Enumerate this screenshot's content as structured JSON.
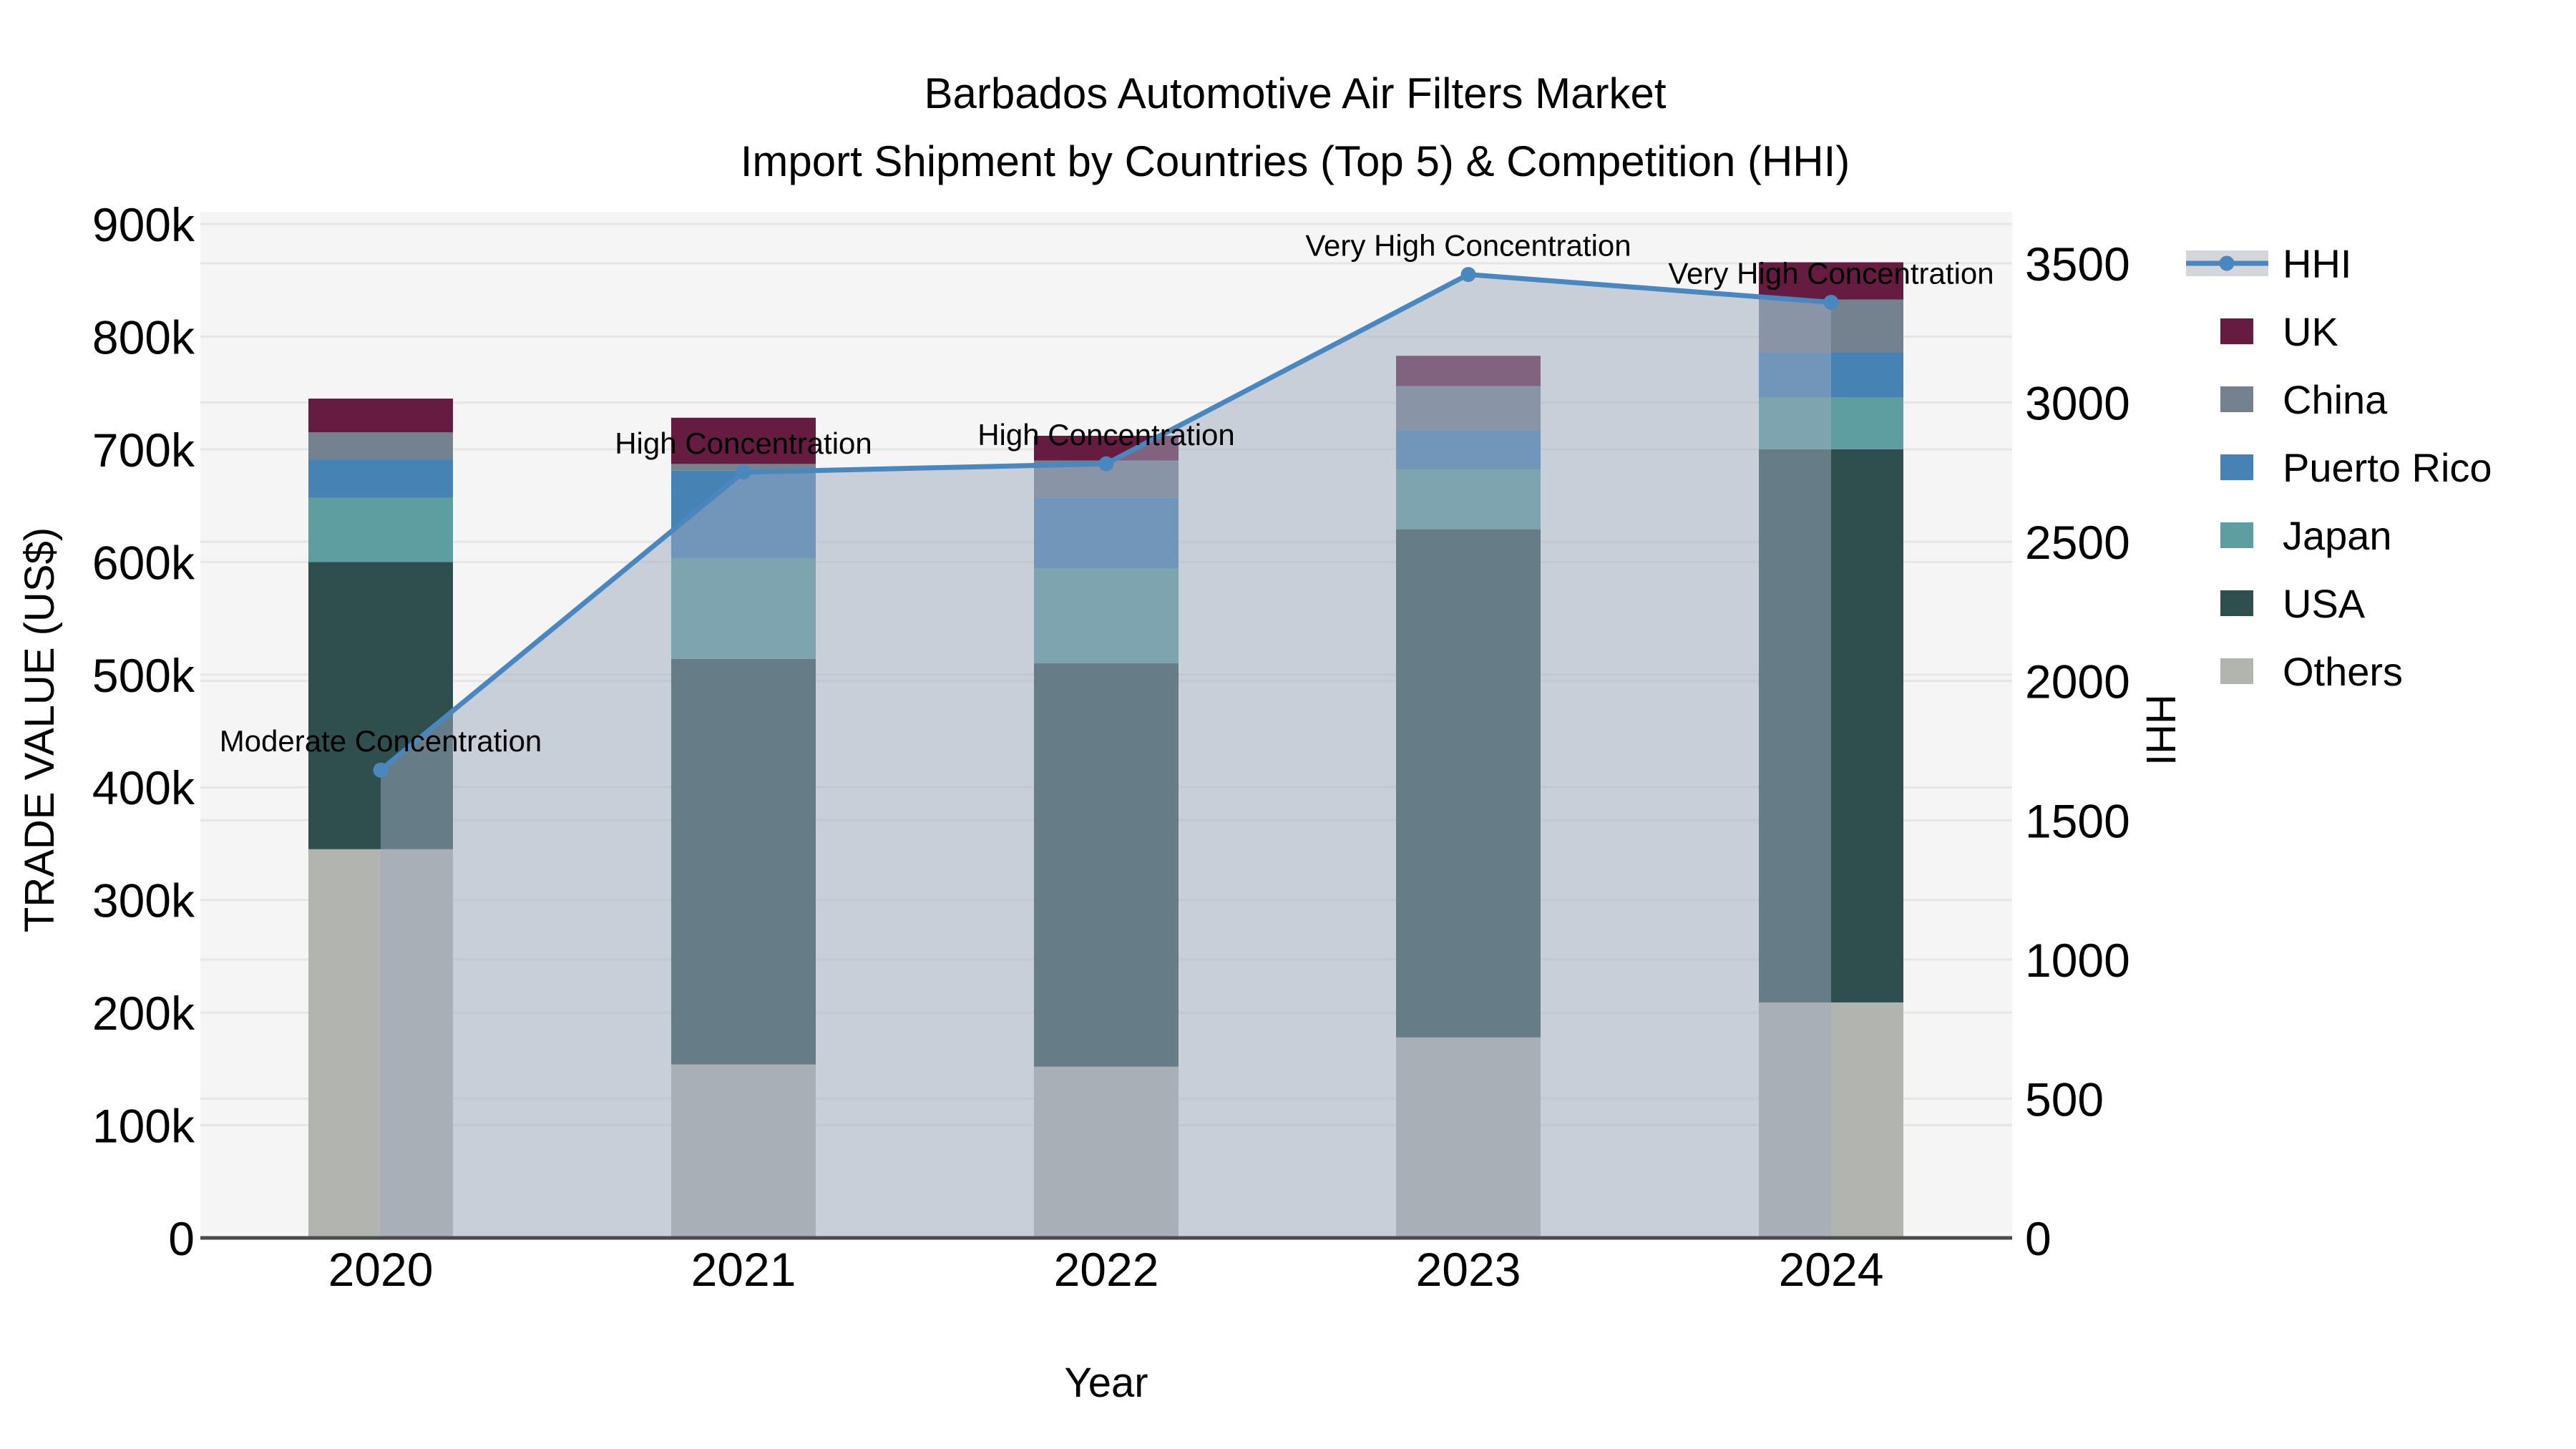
{
  "title": {
    "line1": "Barbados Automotive Air Filters Market",
    "line2": "Import Shipment by Countries (Top 5) & Competition (HHI)"
  },
  "axes": {
    "x_title": "Year",
    "y_left_title": "TRADE VALUE (US$)",
    "y_right_title": "HHI"
  },
  "legend": {
    "items": [
      {
        "label": "HHI",
        "type": "line"
      },
      {
        "label": "UK",
        "type": "patch",
        "color": "#651c40"
      },
      {
        "label": "China",
        "type": "patch",
        "color": "#74818f"
      },
      {
        "label": "Puerto Rico",
        "type": "patch",
        "color": "#4682b4"
      },
      {
        "label": "Japan",
        "type": "patch",
        "color": "#5f9ea0"
      },
      {
        "label": "USA",
        "type": "patch",
        "color": "#2f4f4f"
      },
      {
        "label": "Others",
        "type": "patch",
        "color": "#b2b4b0"
      }
    ]
  },
  "chart_data": {
    "type": "bar",
    "stacked": true,
    "categories": [
      "2020",
      "2021",
      "2022",
      "2023",
      "2024"
    ],
    "series": [
      {
        "name": "UK",
        "color": "#651c40",
        "values": [
          30000,
          41000,
          22000,
          27000,
          33000
        ]
      },
      {
        "name": "China",
        "color": "#74818f",
        "values": [
          24000,
          6000,
          33000,
          39000,
          47000
        ]
      },
      {
        "name": "Puerto Rico",
        "color": "#4682b4",
        "values": [
          34000,
          78000,
          63000,
          35000,
          40000
        ]
      },
      {
        "name": "Japan",
        "color": "#5f9ea0",
        "values": [
          57000,
          89000,
          84000,
          53000,
          46000
        ]
      },
      {
        "name": "USA",
        "color": "#2f4f4f",
        "values": [
          255000,
          360000,
          358000,
          451000,
          491000
        ]
      },
      {
        "name": "Others",
        "color": "#b2b4b0",
        "values": [
          345000,
          154000,
          152000,
          178000,
          209000
        ]
      }
    ],
    "stack_order_bottom_to_top": [
      "Others",
      "USA",
      "Japan",
      "Puerto Rico",
      "China",
      "UK"
    ],
    "line_series": {
      "name": "HHI",
      "color": "#4b87bf",
      "area_fill": "rgba(158,170,190,0.5)",
      "values": [
        1680,
        2750,
        2780,
        3460,
        3360
      ]
    },
    "annotations": [
      {
        "category": "2020",
        "text": "Moderate Concentration"
      },
      {
        "category": "2021",
        "text": "High Concentration"
      },
      {
        "category": "2022",
        "text": "High Concentration"
      },
      {
        "category": "2023",
        "text": "Very High Concentration"
      },
      {
        "category": "2024",
        "text": "Very High Concentration"
      }
    ],
    "xlabel": "Year",
    "ylabel_left": "TRADE VALUE (US$)",
    "ylabel_right": "HHI",
    "y_left": {
      "lim": [
        0,
        900000
      ],
      "ticks": [
        {
          "v": 0,
          "t": "0"
        },
        {
          "v": 100000,
          "t": "100k"
        },
        {
          "v": 200000,
          "t": "200k"
        },
        {
          "v": 300000,
          "t": "300k"
        },
        {
          "v": 400000,
          "t": "400k"
        },
        {
          "v": 500000,
          "t": "500k"
        },
        {
          "v": 600000,
          "t": "600k"
        },
        {
          "v": 700000,
          "t": "700k"
        },
        {
          "v": 800000,
          "t": "800k"
        },
        {
          "v": 900000,
          "t": "900k"
        }
      ]
    },
    "y_right": {
      "lim": [
        0,
        3500
      ],
      "ticks": [
        {
          "v": 0,
          "t": "0"
        },
        {
          "v": 500,
          "t": "500"
        },
        {
          "v": 1000,
          "t": "1000"
        },
        {
          "v": 1500,
          "t": "1500"
        },
        {
          "v": 2000,
          "t": "2000"
        },
        {
          "v": 2500,
          "t": "2500"
        },
        {
          "v": 3000,
          "t": "3000"
        },
        {
          "v": 3500,
          "t": "3500"
        }
      ]
    },
    "grid": true,
    "legend_position": "right"
  },
  "style": {
    "plot_bg": "#f5f5f5",
    "grid_color": "#e6e6e6",
    "axis_line_color": "#4a4a4a",
    "legend_band_color": "#d3d6db"
  }
}
